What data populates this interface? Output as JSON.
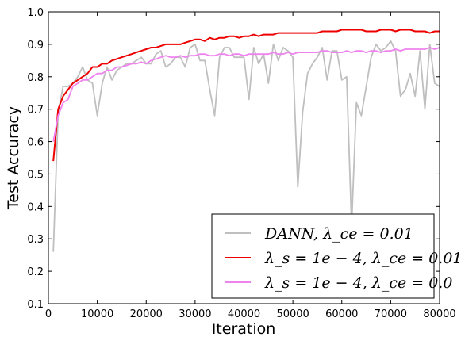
{
  "chart_data": {
    "type": "line",
    "xlabel": "Iteration",
    "ylabel": "Test Accuracy",
    "xlim": [
      0,
      80000
    ],
    "ylim": [
      0.1,
      1.0
    ],
    "xticks": [
      0,
      10000,
      20000,
      30000,
      40000,
      50000,
      60000,
      70000,
      80000
    ],
    "xtick_labels": [
      "0",
      "10000",
      "20000",
      "30000",
      "40000",
      "50000",
      "60000",
      "70000",
      "80000"
    ],
    "yticks": [
      0.1,
      0.2,
      0.3,
      0.4,
      0.5,
      0.6,
      0.7,
      0.8,
      0.9,
      1.0
    ],
    "ytick_labels": [
      "0.1",
      "0.2",
      "0.3",
      "0.4",
      "0.5",
      "0.6",
      "0.7",
      "0.8",
      "0.9",
      "1.0"
    ],
    "grid": false,
    "legend_position": "bottom-right",
    "series": [
      {
        "name": "DANN, λ_ce = 0.01",
        "color": "#bfbfbf",
        "x": [
          1000,
          2000,
          3000,
          4000,
          5000,
          6000,
          7000,
          8000,
          9000,
          10000,
          11000,
          12000,
          13000,
          14000,
          15000,
          16000,
          17000,
          18000,
          19000,
          20000,
          21000,
          22000,
          23000,
          24000,
          25000,
          26000,
          27000,
          28000,
          29000,
          30000,
          31000,
          32000,
          33000,
          34000,
          35000,
          36000,
          37000,
          38000,
          39000,
          40000,
          41000,
          42000,
          43000,
          44000,
          45000,
          46000,
          47000,
          48000,
          49000,
          50000,
          51000,
          52000,
          53000,
          54000,
          55000,
          56000,
          57000,
          58000,
          59000,
          60000,
          61000,
          62000,
          63000,
          64000,
          65000,
          66000,
          67000,
          68000,
          69000,
          70000,
          71000,
          72000,
          73000,
          74000,
          75000,
          76000,
          77000,
          78000,
          79000,
          80000
        ],
        "y": [
          0.26,
          0.69,
          0.77,
          0.77,
          0.78,
          0.8,
          0.83,
          0.79,
          0.78,
          0.68,
          0.78,
          0.83,
          0.79,
          0.82,
          0.83,
          0.84,
          0.84,
          0.85,
          0.86,
          0.84,
          0.84,
          0.87,
          0.88,
          0.83,
          0.84,
          0.86,
          0.86,
          0.83,
          0.89,
          0.9,
          0.85,
          0.85,
          0.76,
          0.68,
          0.86,
          0.89,
          0.89,
          0.86,
          0.86,
          0.86,
          0.73,
          0.89,
          0.84,
          0.87,
          0.78,
          0.9,
          0.85,
          0.89,
          0.88,
          0.86,
          0.46,
          0.69,
          0.81,
          0.84,
          0.86,
          0.89,
          0.79,
          0.88,
          0.88,
          0.79,
          0.8,
          0.34,
          0.72,
          0.68,
          0.77,
          0.86,
          0.9,
          0.88,
          0.89,
          0.91,
          0.88,
          0.74,
          0.76,
          0.81,
          0.74,
          0.88,
          0.7,
          0.9,
          0.78,
          0.77
        ]
      },
      {
        "name": "λ_s = 1e − 4, λ_ce = 0.01",
        "color": "#ee0000",
        "x": [
          1000,
          2000,
          3000,
          4000,
          5000,
          6000,
          7000,
          8000,
          9000,
          10000,
          11000,
          12000,
          13000,
          14000,
          15000,
          16000,
          17000,
          18000,
          19000,
          20000,
          21000,
          22000,
          23000,
          24000,
          25000,
          26000,
          27000,
          28000,
          29000,
          30000,
          31000,
          32000,
          33000,
          34000,
          35000,
          36000,
          37000,
          38000,
          39000,
          40000,
          41000,
          42000,
          43000,
          44000,
          45000,
          46000,
          47000,
          48000,
          49000,
          50000,
          51000,
          52000,
          53000,
          54000,
          55000,
          56000,
          57000,
          58000,
          59000,
          60000,
          61000,
          62000,
          63000,
          64000,
          65000,
          66000,
          67000,
          68000,
          69000,
          70000,
          71000,
          72000,
          73000,
          74000,
          75000,
          76000,
          77000,
          78000,
          79000,
          80000
        ],
        "y": [
          0.54,
          0.7,
          0.74,
          0.76,
          0.78,
          0.79,
          0.8,
          0.81,
          0.83,
          0.83,
          0.84,
          0.84,
          0.85,
          0.855,
          0.86,
          0.865,
          0.87,
          0.875,
          0.88,
          0.885,
          0.89,
          0.89,
          0.895,
          0.9,
          0.9,
          0.9,
          0.9,
          0.905,
          0.91,
          0.915,
          0.915,
          0.91,
          0.92,
          0.915,
          0.92,
          0.92,
          0.925,
          0.925,
          0.92,
          0.925,
          0.925,
          0.93,
          0.925,
          0.93,
          0.93,
          0.93,
          0.935,
          0.935,
          0.935,
          0.935,
          0.935,
          0.935,
          0.935,
          0.935,
          0.935,
          0.94,
          0.94,
          0.94,
          0.94,
          0.945,
          0.945,
          0.945,
          0.945,
          0.945,
          0.94,
          0.94,
          0.94,
          0.945,
          0.945,
          0.945,
          0.94,
          0.945,
          0.945,
          0.945,
          0.94,
          0.94,
          0.94,
          0.935,
          0.94,
          0.94
        ]
      },
      {
        "name": "λ_s = 1e − 4, λ_ce = 0.0",
        "color": "#ee82ee",
        "x": [
          1000,
          2000,
          3000,
          4000,
          5000,
          6000,
          7000,
          8000,
          9000,
          10000,
          11000,
          12000,
          13000,
          14000,
          15000,
          16000,
          17000,
          18000,
          19000,
          20000,
          21000,
          22000,
          23000,
          24000,
          25000,
          26000,
          27000,
          28000,
          29000,
          30000,
          31000,
          32000,
          33000,
          34000,
          35000,
          36000,
          37000,
          38000,
          39000,
          40000,
          41000,
          42000,
          43000,
          44000,
          45000,
          46000,
          47000,
          48000,
          49000,
          50000,
          51000,
          52000,
          53000,
          54000,
          55000,
          56000,
          57000,
          58000,
          59000,
          60000,
          61000,
          62000,
          63000,
          64000,
          65000,
          66000,
          67000,
          68000,
          69000,
          70000,
          71000,
          72000,
          73000,
          74000,
          75000,
          76000,
          77000,
          78000,
          79000,
          80000
        ],
        "y": [
          0.6,
          0.68,
          0.72,
          0.73,
          0.77,
          0.78,
          0.79,
          0.79,
          0.8,
          0.81,
          0.81,
          0.82,
          0.82,
          0.83,
          0.83,
          0.835,
          0.84,
          0.84,
          0.845,
          0.84,
          0.85,
          0.855,
          0.86,
          0.865,
          0.86,
          0.86,
          0.865,
          0.86,
          0.865,
          0.865,
          0.87,
          0.87,
          0.865,
          0.865,
          0.87,
          0.87,
          0.865,
          0.87,
          0.87,
          0.865,
          0.87,
          0.87,
          0.87,
          0.87,
          0.87,
          0.875,
          0.87,
          0.87,
          0.875,
          0.87,
          0.875,
          0.875,
          0.875,
          0.875,
          0.875,
          0.88,
          0.88,
          0.875,
          0.875,
          0.875,
          0.88,
          0.875,
          0.88,
          0.88,
          0.875,
          0.88,
          0.88,
          0.875,
          0.88,
          0.88,
          0.885,
          0.88,
          0.885,
          0.885,
          0.885,
          0.885,
          0.885,
          0.89,
          0.885,
          0.89
        ]
      }
    ]
  }
}
